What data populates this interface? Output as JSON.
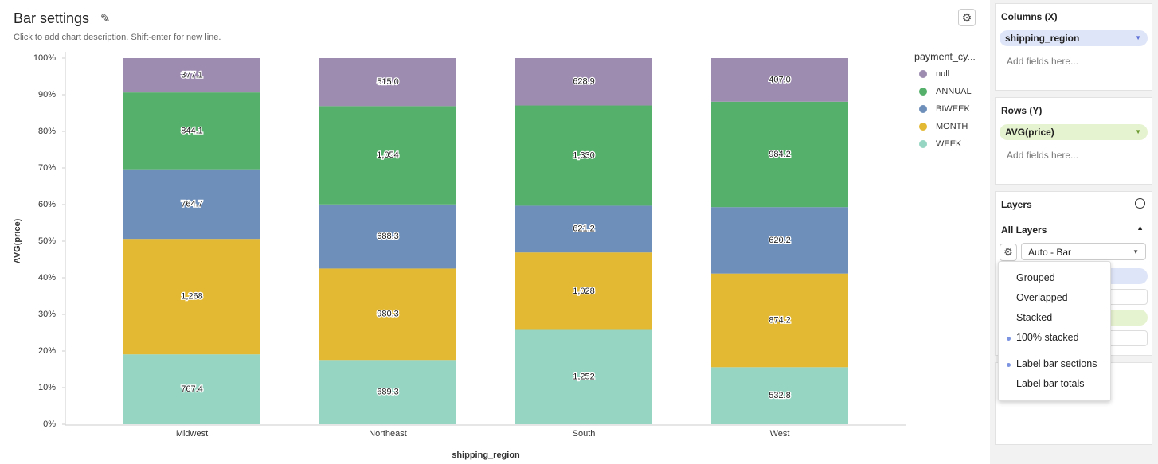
{
  "header": {
    "title": "Bar settings",
    "description": "Click to add chart description. Shift-enter for new line."
  },
  "chart_data": {
    "type": "bar",
    "stack": "percent",
    "x_label": "shipping_region",
    "y_label": "AVG(price)",
    "legend_title": "payment_cy...",
    "legend": "right",
    "grid": false,
    "categories": [
      "Midwest",
      "Northeast",
      "South",
      "West"
    ],
    "series": [
      {
        "name": "null",
        "color": "#9d8bb0",
        "values": [
          377.1,
          515.0,
          628.9,
          407.0
        ],
        "value_labels": [
          "377.1",
          "515.0",
          "628.9",
          "407.0"
        ]
      },
      {
        "name": "ANNUAL",
        "color": "#55b06b",
        "values": [
          844.1,
          1054,
          1330,
          984.2
        ],
        "value_labels": [
          "844.1",
          "1,054",
          "1,330",
          "984.2"
        ]
      },
      {
        "name": "BIWEEK",
        "color": "#6e8fba",
        "values": [
          764.7,
          688.3,
          621.2,
          620.2
        ],
        "value_labels": [
          "764.7",
          "688.3",
          "621.2",
          "620.2"
        ]
      },
      {
        "name": "MONTH",
        "color": "#e3b833",
        "values": [
          1268,
          980.3,
          1028,
          874.2
        ],
        "value_labels": [
          "1,268",
          "980.3",
          "1,028",
          "874.2"
        ]
      },
      {
        "name": "WEEK",
        "color": "#95d5c2",
        "values": [
          767.4,
          689.3,
          1252,
          532.8
        ],
        "value_labels": [
          "767.4",
          "689.3",
          "1,252",
          "532.8"
        ]
      }
    ],
    "ylim": [
      0,
      100
    ],
    "yticks": [
      {
        "value": 0,
        "label": "0%"
      },
      {
        "value": 10,
        "label": "10%"
      },
      {
        "value": 20,
        "label": "20%"
      },
      {
        "value": 30,
        "label": "30%"
      },
      {
        "value": 40,
        "label": "40%"
      },
      {
        "value": 50,
        "label": "50%"
      },
      {
        "value": 60,
        "label": "60%"
      },
      {
        "value": 70,
        "label": "70%"
      },
      {
        "value": 80,
        "label": "80%"
      },
      {
        "value": 90,
        "label": "90%"
      },
      {
        "value": 100,
        "label": "100%"
      }
    ]
  },
  "panel": {
    "columns": {
      "title": "Columns (X)",
      "field": "shipping_region",
      "placeholder": "Add fields here..."
    },
    "rows": {
      "title": "Rows (Y)",
      "field": "AVG(price)",
      "placeholder": "Add fields here..."
    },
    "layers": {
      "title": "Layers",
      "group": "All Layers",
      "mark": "Auto - Bar"
    },
    "menu": {
      "items": [
        {
          "label": "Grouped",
          "checked": false
        },
        {
          "label": "Overlapped",
          "checked": false
        },
        {
          "label": "Stacked",
          "checked": false
        },
        {
          "label": "100% stacked",
          "checked": true
        }
      ],
      "options": [
        {
          "label": "Label bar sections",
          "checked": true
        },
        {
          "label": "Label bar totals",
          "checked": false
        }
      ]
    }
  }
}
